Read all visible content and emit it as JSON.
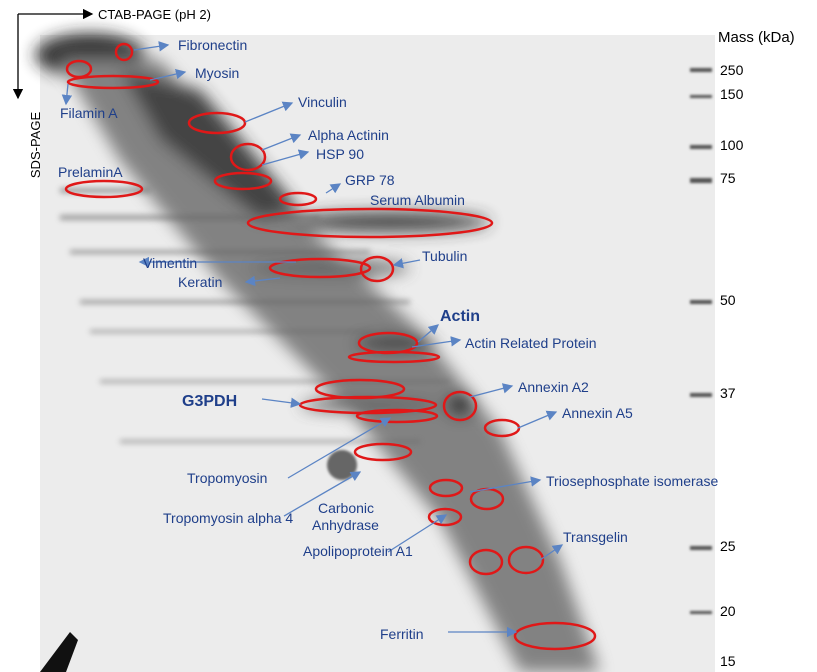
{
  "axes": {
    "horizontal": "CTAB-PAGE (pH 2)",
    "vertical": "SDS-PAGE",
    "mass_title": "Mass (kDa)"
  },
  "mass_markers": [
    250,
    150,
    100,
    75,
    50,
    37,
    25,
    20,
    15
  ],
  "proteins": [
    {
      "text": "Fibronectin"
    },
    {
      "text": "Myosin"
    },
    {
      "text": "Filamin A"
    },
    {
      "text": "Vinculin"
    },
    {
      "text": "Alpha Actinin"
    },
    {
      "text": "HSP 90"
    },
    {
      "text": "PrelaminA"
    },
    {
      "text": "GRP 78"
    },
    {
      "text": "Serum Albumin"
    },
    {
      "text": "Tubulin"
    },
    {
      "text": "Vimentin"
    },
    {
      "text": "Keratin"
    },
    {
      "text": "Actin"
    },
    {
      "text": "Actin Related Protein"
    },
    {
      "text": "Annexin A2"
    },
    {
      "text": "G3PDH"
    },
    {
      "text": "Annexin A5"
    },
    {
      "text": "Tropomyosin"
    },
    {
      "text": "Triosephosphate isomerase"
    },
    {
      "text": "Carbonic"
    },
    {
      "text": "Anhydrase"
    },
    {
      "text": "Tropomyosin alpha 4"
    },
    {
      "text": "Transgelin"
    },
    {
      "text": "Apolipoprotein A1"
    },
    {
      "text": "Ferritin"
    }
  ]
}
